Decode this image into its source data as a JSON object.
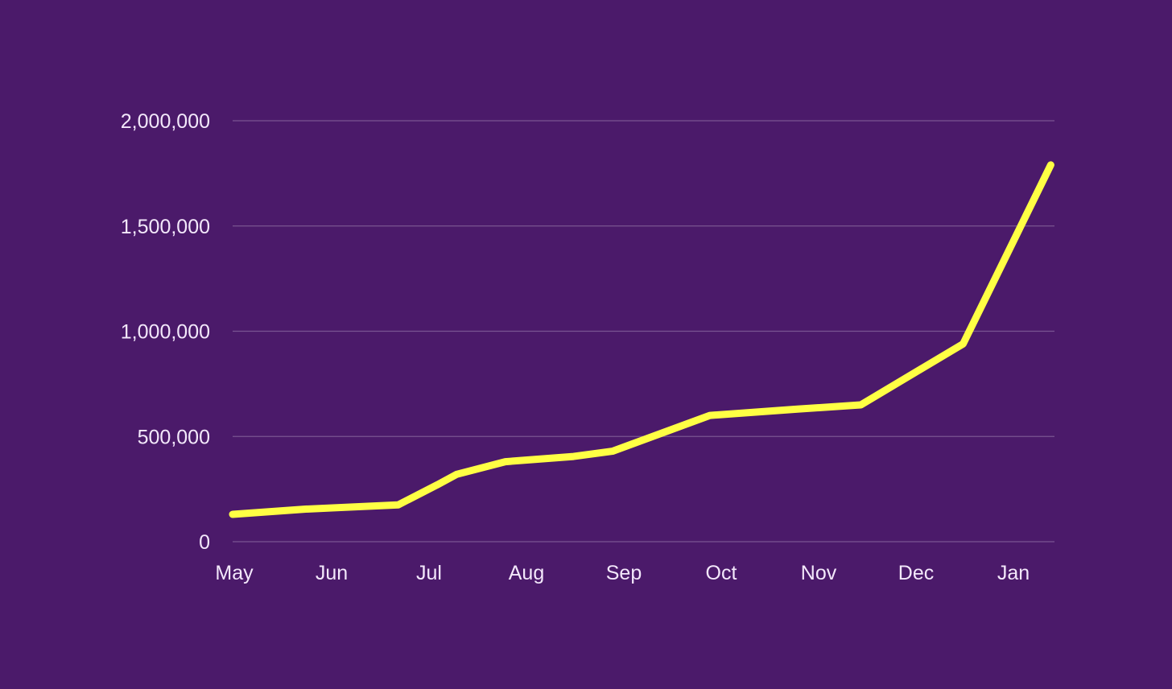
{
  "chart_data": {
    "type": "line",
    "title": "",
    "xlabel": "",
    "ylabel": "",
    "categories": [
      "May",
      "Jun",
      "Jul",
      "Aug",
      "Sep",
      "Oct",
      "Nov",
      "Dec",
      "Jan"
    ],
    "y_ticks": [
      {
        "value": 0,
        "label": "0"
      },
      {
        "value": 500000,
        "label": "500,000"
      },
      {
        "value": 1000000,
        "label": "1,000,000"
      },
      {
        "value": 1500000,
        "label": "1,500,000"
      },
      {
        "value": 2000000,
        "label": "2,000,000"
      }
    ],
    "ylim": [
      0,
      2000000
    ],
    "xlim": [
      0,
      8.4
    ],
    "grid": true,
    "legend": "none",
    "series": [
      {
        "color": "#FFFF44",
        "points": [
          {
            "x": 0.0,
            "y": 130000
          },
          {
            "x": 0.75,
            "y": 155000
          },
          {
            "x": 1.7,
            "y": 175000
          },
          {
            "x": 2.1,
            "y": 270000
          },
          {
            "x": 2.3,
            "y": 320000
          },
          {
            "x": 2.8,
            "y": 380000
          },
          {
            "x": 3.5,
            "y": 405000
          },
          {
            "x": 3.9,
            "y": 430000
          },
          {
            "x": 4.9,
            "y": 600000
          },
          {
            "x": 5.8,
            "y": 630000
          },
          {
            "x": 6.45,
            "y": 650000
          },
          {
            "x": 7.5,
            "y": 940000
          },
          {
            "x": 8.4,
            "y": 1790000
          }
        ]
      }
    ]
  }
}
